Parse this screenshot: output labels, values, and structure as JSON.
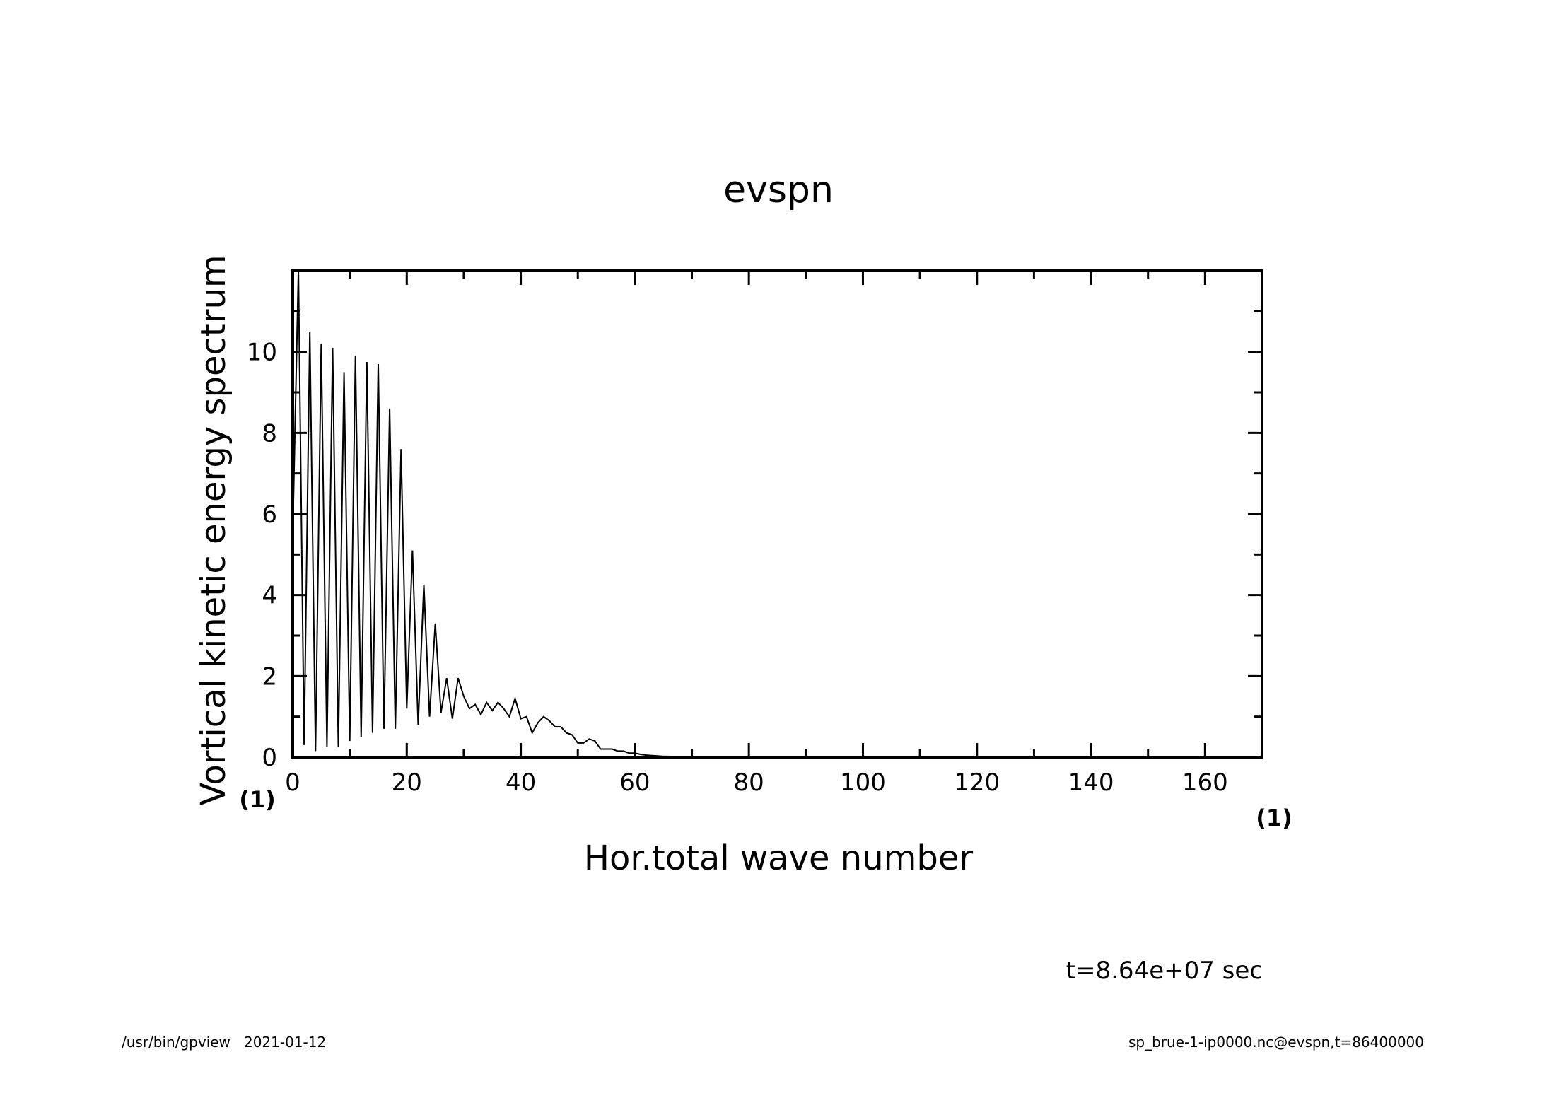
{
  "chart_data": {
    "type": "line",
    "title": "evspn",
    "xlabel": "Hor.total wave number",
    "ylabel": "Vortical kinetic energy spectrum",
    "x_unit": "(1)",
    "y_unit": "(1)",
    "xlim": [
      0,
      170
    ],
    "ylim": [
      0,
      12
    ],
    "x_ticks": [
      "0",
      "20",
      "40",
      "60",
      "80",
      "100",
      "120",
      "140",
      "160"
    ],
    "y_ticks": [
      "0",
      "2",
      "4",
      "6",
      "8",
      "10"
    ],
    "grid": false,
    "series": [
      {
        "x": [
          0,
          1,
          2,
          3,
          4,
          5,
          6,
          7,
          8,
          9,
          10,
          11,
          12,
          13,
          14,
          15,
          16,
          17,
          18,
          19,
          20,
          21,
          22,
          23,
          24,
          25,
          26,
          27,
          28,
          29,
          30,
          31,
          32,
          33,
          34,
          35,
          36,
          37,
          38,
          39,
          40,
          41,
          42,
          43,
          44,
          45,
          46,
          47,
          48,
          49,
          50,
          51,
          52,
          53,
          54,
          55,
          56,
          57,
          58,
          59,
          60,
          61,
          62,
          63,
          64,
          65,
          66,
          67,
          68,
          69,
          70,
          72,
          75,
          80,
          90,
          100,
          110,
          120,
          130,
          140,
          150,
          160
        ],
        "y": [
          5.5,
          12.0,
          0.3,
          10.5,
          0.15,
          10.2,
          0.25,
          10.1,
          0.25,
          9.5,
          0.4,
          9.9,
          0.5,
          9.75,
          0.6,
          9.7,
          0.7,
          8.6,
          0.7,
          7.6,
          1.2,
          5.1,
          0.8,
          4.25,
          1.0,
          3.3,
          1.1,
          1.95,
          0.95,
          1.95,
          1.5,
          1.2,
          1.3,
          1.05,
          1.35,
          1.15,
          1.35,
          1.2,
          1.0,
          1.45,
          0.95,
          1.0,
          0.6,
          0.85,
          1.0,
          0.9,
          0.75,
          0.75,
          0.6,
          0.55,
          0.35,
          0.35,
          0.45,
          0.4,
          0.2,
          0.2,
          0.2,
          0.15,
          0.15,
          0.1,
          0.1,
          0.07,
          0.05,
          0.04,
          0.03,
          0.02,
          0.02,
          0.01,
          0.01,
          0.005,
          0.005,
          0,
          0,
          0,
          0,
          0,
          0,
          0,
          0,
          0,
          0,
          0
        ]
      }
    ]
  },
  "annotation": {
    "time_label": "t=8.64e+07 sec"
  },
  "footer": {
    "left": "/usr/bin/gpview   2021-01-12",
    "right": "sp_brue-1-ip0000.nc@evspn,t=86400000"
  }
}
